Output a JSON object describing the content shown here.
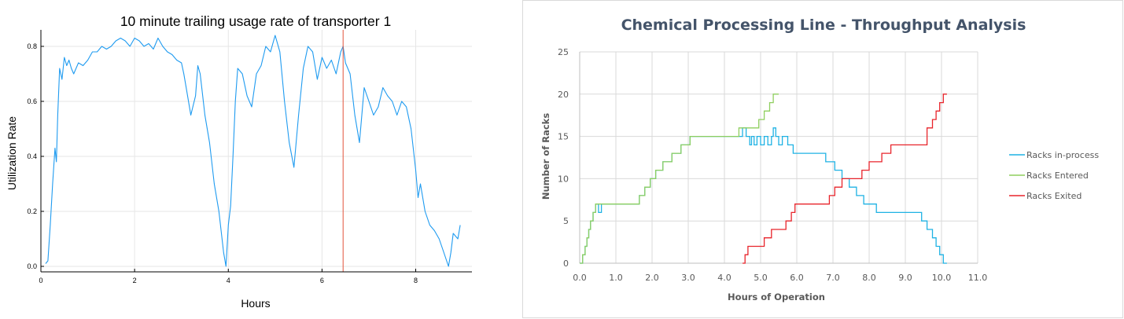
{
  "charts": [
    {
      "type": "line",
      "title": "10 minute trailing usage rate of transporter 1",
      "xlabel": "Hours",
      "ylabel": "Utilization Rate",
      "xlim": [
        0,
        9.2
      ],
      "ylim": [
        -0.02,
        0.86
      ],
      "x_ticks": [
        0,
        2,
        4,
        6,
        8
      ],
      "x_tick_labels": [
        "0",
        "2",
        "4",
        "6",
        "8"
      ],
      "y_ticks": [
        0,
        0.2,
        0.4,
        0.6,
        0.8
      ],
      "y_tick_labels": [
        "0.0",
        "0.2",
        "0.4",
        "0.6",
        "0.8"
      ],
      "grid": true,
      "legend": "none",
      "colors": {
        "series": "#1f9bf0",
        "vline": "#e2533b",
        "grid": "#e6e6e6"
      },
      "vlines": [
        {
          "x": 6.45
        }
      ],
      "series": [
        {
          "x": [
            0.1,
            0.15,
            0.2,
            0.25,
            0.3,
            0.33,
            0.36,
            0.4,
            0.45,
            0.5,
            0.55,
            0.6,
            0.65,
            0.7,
            0.8,
            0.9,
            1.0,
            1.1,
            1.2,
            1.3,
            1.4,
            1.5,
            1.6,
            1.7,
            1.8,
            1.9,
            2.0,
            2.1,
            2.2,
            2.3,
            2.4,
            2.5,
            2.6,
            2.7,
            2.8,
            2.9,
            3.0,
            3.05,
            3.1,
            3.2,
            3.3,
            3.35,
            3.4,
            3.5,
            3.6,
            3.7,
            3.8,
            3.9,
            3.95,
            4.0,
            4.05,
            4.1,
            4.15,
            4.2,
            4.3,
            4.4,
            4.5,
            4.6,
            4.7,
            4.8,
            4.9,
            5.0,
            5.1,
            5.2,
            5.3,
            5.4,
            5.5,
            5.6,
            5.7,
            5.8,
            5.9,
            6.0,
            6.1,
            6.2,
            6.3,
            6.4,
            6.45,
            6.5,
            6.6,
            6.7,
            6.8,
            6.9,
            7.0,
            7.1,
            7.2,
            7.3,
            7.4,
            7.5,
            7.6,
            7.7,
            7.8,
            7.9,
            8.0,
            8.05,
            8.1,
            8.2,
            8.3,
            8.4,
            8.5,
            8.6,
            8.7,
            8.75,
            8.8,
            8.9,
            8.95
          ],
          "y": [
            0.01,
            0.02,
            0.15,
            0.3,
            0.43,
            0.38,
            0.55,
            0.72,
            0.68,
            0.76,
            0.73,
            0.75,
            0.72,
            0.7,
            0.74,
            0.73,
            0.75,
            0.78,
            0.78,
            0.8,
            0.79,
            0.8,
            0.82,
            0.83,
            0.82,
            0.8,
            0.83,
            0.82,
            0.8,
            0.81,
            0.79,
            0.83,
            0.8,
            0.78,
            0.77,
            0.75,
            0.74,
            0.7,
            0.65,
            0.55,
            0.62,
            0.73,
            0.7,
            0.55,
            0.45,
            0.3,
            0.2,
            0.05,
            0.0,
            0.15,
            0.22,
            0.4,
            0.6,
            0.72,
            0.7,
            0.62,
            0.58,
            0.7,
            0.73,
            0.8,
            0.78,
            0.84,
            0.78,
            0.6,
            0.45,
            0.36,
            0.55,
            0.72,
            0.8,
            0.78,
            0.68,
            0.76,
            0.72,
            0.75,
            0.7,
            0.78,
            0.8,
            0.74,
            0.7,
            0.55,
            0.45,
            0.65,
            0.6,
            0.55,
            0.58,
            0.65,
            0.62,
            0.6,
            0.55,
            0.6,
            0.58,
            0.5,
            0.35,
            0.25,
            0.3,
            0.2,
            0.15,
            0.13,
            0.1,
            0.05,
            0.0,
            0.05,
            0.12,
            0.1,
            0.15
          ]
        }
      ]
    },
    {
      "type": "line",
      "title": "Chemical Processing  Line - Throughput  Analysis",
      "xlabel": "Hours of Operation",
      "ylabel": "Number of Racks",
      "xlim": [
        0,
        11
      ],
      "ylim": [
        0,
        25
      ],
      "x_ticks": [
        0,
        1,
        2,
        3,
        4,
        5,
        6,
        7,
        8,
        9,
        10,
        11
      ],
      "x_tick_labels": [
        "0.0",
        "1.0",
        "2.0",
        "3.0",
        "4.0",
        "5.0",
        "6.0",
        "7.0",
        "8.0",
        "9.0",
        "10.0",
        "11.0"
      ],
      "y_ticks": [
        0,
        5,
        10,
        15,
        20,
        25
      ],
      "y_tick_labels": [
        "0",
        "5",
        "10",
        "15",
        "20",
        "25"
      ],
      "grid": true,
      "legend": "right",
      "colors": {
        "grid": "#d9d9d9",
        "text": "#595959",
        "title": "#44546a",
        "axis": "#bfbfbf"
      },
      "series": [
        {
          "name": "Racks in-process",
          "color": "#1fb2e4",
          "step": true,
          "x": [
            0,
            0.08,
            0.15,
            0.2,
            0.25,
            0.3,
            0.37,
            0.44,
            0.52,
            0.6,
            0.65,
            1.65,
            1.8,
            1.95,
            2.1,
            2.3,
            2.55,
            2.8,
            3.05,
            3.3,
            4.5,
            4.6,
            4.7,
            4.75,
            4.82,
            4.9,
            5.0,
            5.1,
            5.2,
            5.3,
            5.35,
            5.42,
            5.5,
            5.6,
            5.75,
            5.9,
            6.8,
            7.05,
            7.25,
            7.45,
            7.65,
            7.85,
            8.0,
            8.2,
            8.55,
            9.45,
            9.6,
            9.75,
            9.85,
            9.95,
            10.05,
            10.15
          ],
          "y": [
            0,
            1,
            2,
            3,
            4,
            5,
            6,
            7,
            6,
            7,
            7,
            8,
            9,
            10,
            11,
            12,
            13,
            14,
            15,
            15,
            16,
            15,
            14,
            15,
            14,
            15,
            14,
            15,
            14,
            15,
            16,
            15,
            14,
            15,
            14,
            13,
            12,
            11,
            10,
            9,
            8,
            7,
            7,
            6,
            6,
            5,
            4,
            3,
            2,
            1,
            0,
            0
          ]
        },
        {
          "name": "Racks Entered",
          "color": "#8fcf5f",
          "step": true,
          "x": [
            0,
            0.08,
            0.15,
            0.2,
            0.25,
            0.3,
            0.37,
            0.44,
            0.52,
            0.6,
            1.65,
            1.8,
            1.95,
            2.1,
            2.3,
            2.55,
            2.8,
            3.05,
            3.3,
            4.4,
            4.6,
            4.95,
            5.1,
            5.25,
            5.35,
            5.45,
            5.5
          ],
          "y": [
            0,
            1,
            2,
            3,
            4,
            5,
            6,
            7,
            7,
            7,
            8,
            9,
            10,
            11,
            12,
            13,
            14,
            15,
            15,
            16,
            16,
            17,
            18,
            19,
            20,
            20,
            20
          ]
        },
        {
          "name": "Racks Exited",
          "color": "#e8242b",
          "step": true,
          "x": [
            4.5,
            4.57,
            4.65,
            4.95,
            5.1,
            5.3,
            5.55,
            5.7,
            5.85,
            5.95,
            6.75,
            6.9,
            7.05,
            7.15,
            7.25,
            7.65,
            7.8,
            8.0,
            8.15,
            8.35,
            8.6,
            9.35,
            9.6,
            9.75,
            9.85,
            9.95,
            10.05,
            10.15
          ],
          "y": [
            0,
            1,
            2,
            2,
            3,
            4,
            4,
            5,
            6,
            7,
            7,
            8,
            9,
            9,
            10,
            10,
            11,
            12,
            12,
            13,
            14,
            14,
            16,
            17,
            18,
            19,
            20,
            20
          ]
        }
      ]
    }
  ]
}
